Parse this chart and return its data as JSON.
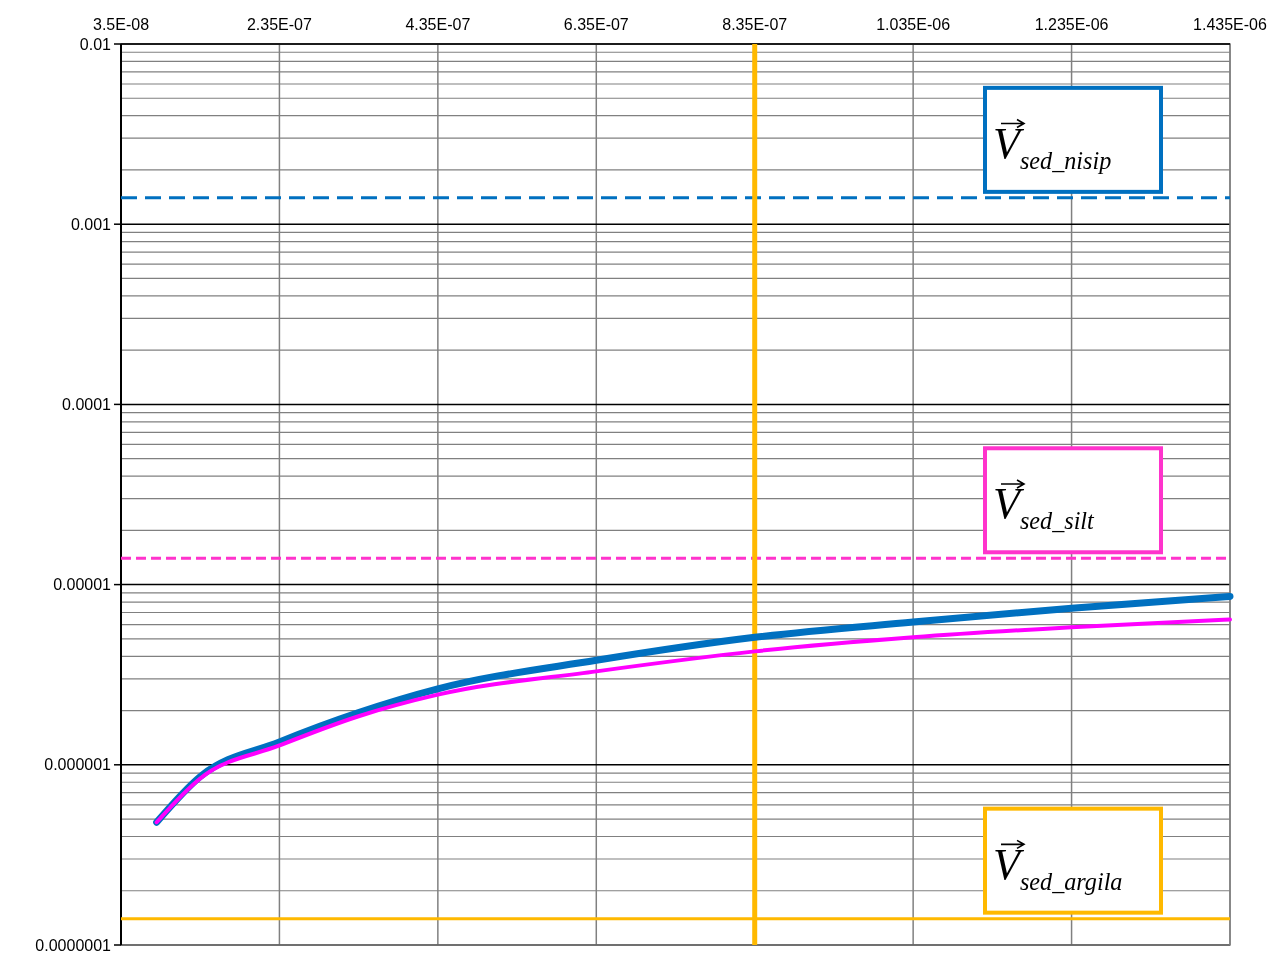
{
  "chart_data": {
    "type": "line",
    "x": [
      8e-08,
      1.35e-07,
      2.35e-07,
      3.35e-07,
      4.35e-07,
      6.35e-07,
      8.35e-07,
      1.035e-06,
      1.235e-06,
      1.435e-06
    ],
    "series": [
      {
        "color": "#0070c0",
        "values": [
          4.8e-07,
          8.6e-07,
          1.34e-06,
          1.95e-06,
          2.64e-06,
          3.8e-06,
          5.1e-06,
          6.2e-06,
          7.4e-06,
          8.6e-06
        ]
      },
      {
        "color": "#ff00ff",
        "values": [
          4.8e-07,
          8.4e-07,
          1.28e-06,
          1.86e-06,
          2.45e-06,
          3.3e-06,
          4.26e-06,
          5.1e-06,
          5.8e-06,
          6.4e-06
        ]
      }
    ],
    "xlim": [
      3.5e-08,
      1.435e-06
    ],
    "xticks": [
      {
        "value": 3.5e-08,
        "label": "3.5E-08"
      },
      {
        "value": 2.35e-07,
        "label": "2.35E-07"
      },
      {
        "value": 4.35e-07,
        "label": "4.35E-07"
      },
      {
        "value": 6.35e-07,
        "label": "6.35E-07"
      },
      {
        "value": 8.35e-07,
        "label": "8.35E-07"
      },
      {
        "value": 1.035e-06,
        "label": "1.035E-06"
      },
      {
        "value": 1.235e-06,
        "label": "1.235E-06"
      },
      {
        "value": 1.435e-06,
        "label": "1.435E-06"
      }
    ],
    "ylim": [
      1e-07,
      0.01
    ],
    "yticks": [
      {
        "value": 1e-07,
        "label": "0.0000001"
      },
      {
        "value": 1e-06,
        "label": "0.000001"
      },
      {
        "value": 1e-05,
        "label": "0.00001"
      },
      {
        "value": 0.0001,
        "label": "0.0001"
      },
      {
        "value": 0.001,
        "label": "0.001"
      },
      {
        "value": 0.01,
        "label": "0.01"
      }
    ],
    "log": "y",
    "grid": true,
    "marker": "none",
    "line_style": "solid",
    "ref_lines": [
      {
        "axis": "y",
        "value": 0.0014,
        "label": "V⃗$_{sed_nisip}$",
        "color": "#0070c0",
        "line_style": "dashed"
      },
      {
        "axis": "y",
        "value": 1.4e-05,
        "label": "V⃗$_{sed_silt}$",
        "color": "#ff33cc",
        "line_style": "dashed"
      },
      {
        "axis": "y",
        "value": 1.4e-07,
        "label": "V⃗$_{sed_argila}$",
        "color": "#ffb900",
        "line_style": "solid"
      },
      {
        "axis": "x",
        "value": 8.35e-07,
        "color": "#ffb900",
        "line_style": "solid"
      }
    ]
  }
}
